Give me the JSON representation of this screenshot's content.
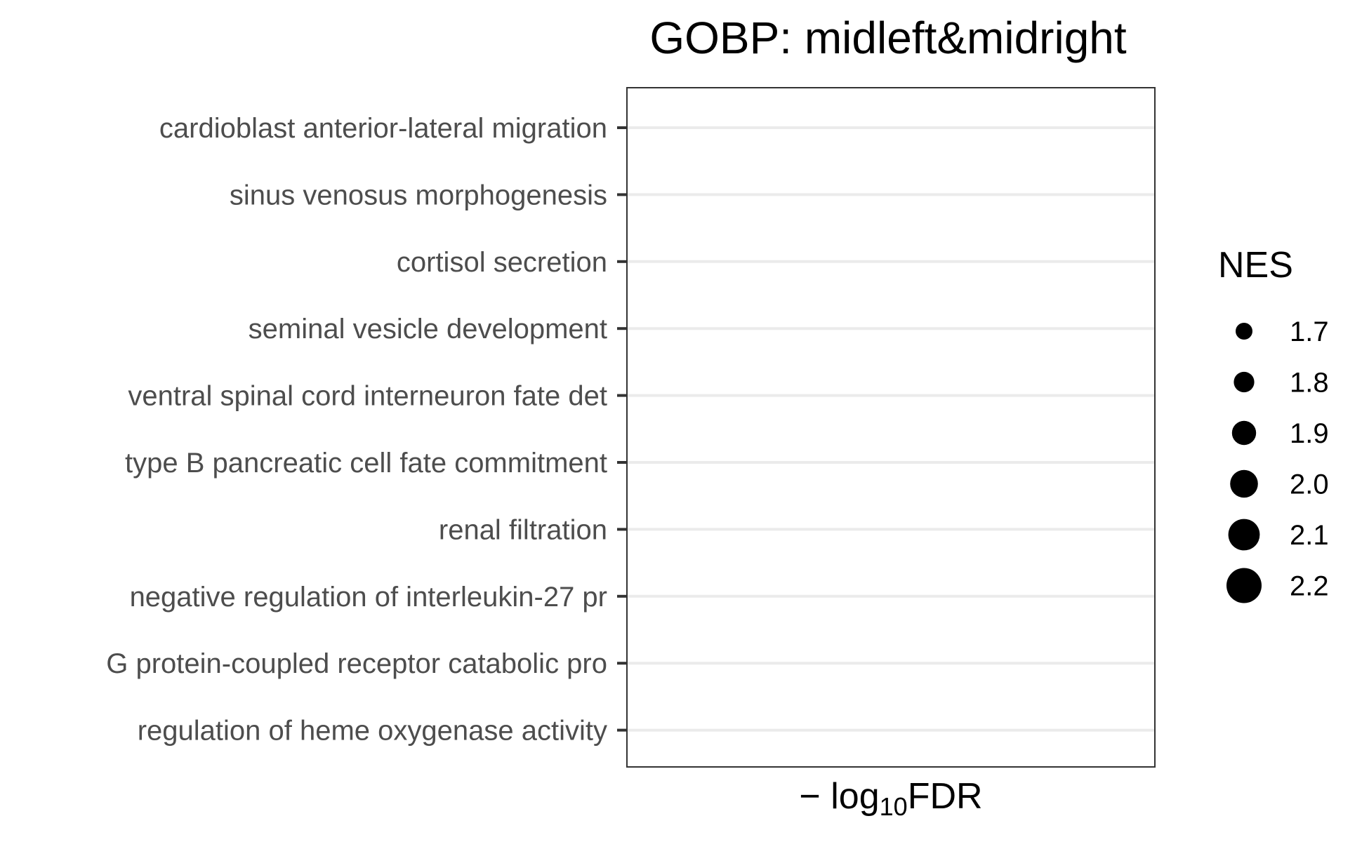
{
  "chart_data": {
    "type": "scatter",
    "title": "GOBP: midleft&midright",
    "xlabel": "−log10FDR",
    "xlabel_parts": {
      "prefix": "− log",
      "sub": "10",
      "suffix": "FDR"
    },
    "ylabel": "",
    "categories": [
      "cardioblast anterior-lateral migration",
      "sinus venosus morphogenesis",
      "cortisol secretion",
      "seminal vesicle development",
      "ventral spinal cord interneuron fate det",
      "type B pancreatic cell fate commitment",
      "renal filtration",
      "negative regulation of interleukin-27 pr",
      "G protein-coupled receptor catabolic pro",
      "regulation of heme oxygenase activity"
    ],
    "points": [],
    "grid": true,
    "grid_color": "#ebebeb",
    "legend": {
      "title": "NES",
      "placement": "right",
      "values": [
        "1.7",
        "1.8",
        "1.9",
        "2.0",
        "2.1",
        "2.2"
      ],
      "size_range": [
        1.7,
        2.2
      ],
      "color": "#000000"
    }
  }
}
